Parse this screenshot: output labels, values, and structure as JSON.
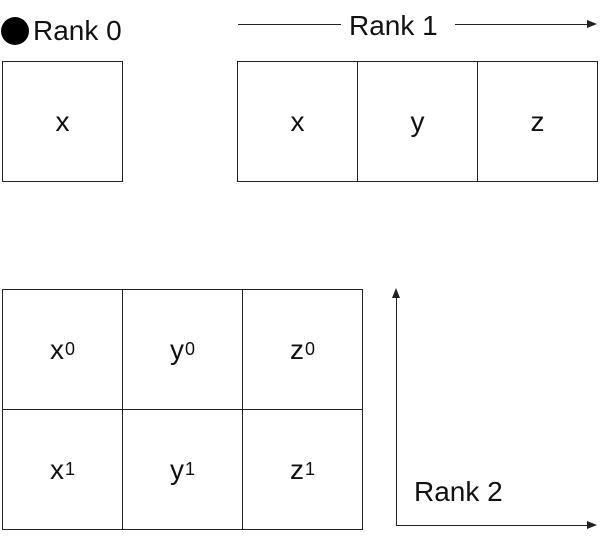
{
  "rank0": {
    "label": "Rank 0",
    "cells": [
      "x"
    ]
  },
  "rank1": {
    "label": "Rank 1",
    "cells": [
      "x",
      "y",
      "z"
    ]
  },
  "rank2": {
    "label": "Rank 2",
    "rows": [
      [
        {
          "base": "x",
          "sub": "0"
        },
        {
          "base": "y",
          "sub": "0"
        },
        {
          "base": "z",
          "sub": "0"
        }
      ],
      [
        {
          "base": "x",
          "sub": "1"
        },
        {
          "base": "y",
          "sub": "1"
        },
        {
          "base": "z",
          "sub": "1"
        }
      ]
    ]
  }
}
